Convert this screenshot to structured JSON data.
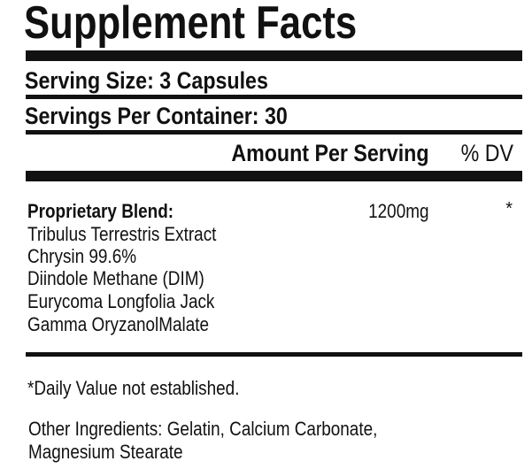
{
  "title": "Supplement Facts",
  "serving_size": "Serving Size: 3 Capsules",
  "servings_per_container": "Servings Per Container: 30",
  "header": {
    "amount": "Amount Per Serving",
    "dv": "% DV"
  },
  "blend": {
    "name": "Proprietary Blend:",
    "amount": "1200mg",
    "dv": "*",
    "ingredients": [
      "Tribulus Terrestris Extract",
      "Chrysin 99.6%",
      "Diindole Methane (DIM)",
      "Eurycoma Longfolia Jack",
      "Gamma OryzanolMalate"
    ]
  },
  "footnote": "*Daily Value not established.",
  "other_ingredients": {
    "line1": "Other Ingredients: Gelatin, Calcium Carbonate,",
    "line2": "Magnesium Stearate"
  }
}
